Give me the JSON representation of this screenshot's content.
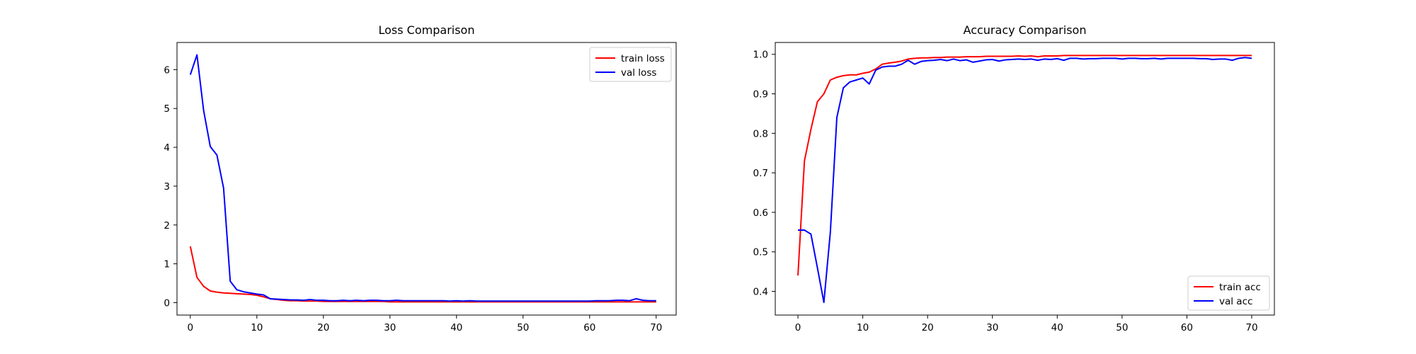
{
  "chart_data": [
    {
      "type": "line",
      "title": "Loss Comparison",
      "xlabel": "",
      "ylabel": "",
      "xlim": [
        -2,
        73
      ],
      "ylim": [
        -0.32,
        6.7
      ],
      "xticks": [
        0,
        10,
        20,
        30,
        40,
        50,
        60,
        70
      ],
      "yticks": [
        0,
        1,
        2,
        3,
        4,
        5,
        6
      ],
      "grid": false,
      "legend_position": "upper right",
      "x": [
        0,
        1,
        2,
        3,
        4,
        5,
        6,
        7,
        8,
        9,
        10,
        11,
        12,
        13,
        14,
        15,
        16,
        17,
        18,
        19,
        20,
        21,
        22,
        23,
        24,
        25,
        26,
        27,
        28,
        29,
        30,
        31,
        32,
        33,
        34,
        35,
        36,
        37,
        38,
        39,
        40,
        41,
        42,
        43,
        44,
        45,
        46,
        47,
        48,
        49,
        50,
        51,
        52,
        53,
        54,
        55,
        56,
        57,
        58,
        59,
        60,
        61,
        62,
        63,
        64,
        65,
        66,
        67,
        68,
        69,
        70
      ],
      "series": [
        {
          "name": "train loss",
          "color": "#ff0000",
          "values": [
            1.45,
            0.65,
            0.42,
            0.3,
            0.27,
            0.25,
            0.24,
            0.23,
            0.22,
            0.21,
            0.19,
            0.15,
            0.1,
            0.08,
            0.06,
            0.05,
            0.05,
            0.04,
            0.04,
            0.04,
            0.03,
            0.03,
            0.03,
            0.03,
            0.03,
            0.03,
            0.03,
            0.03,
            0.03,
            0.03,
            0.02,
            0.02,
            0.02,
            0.02,
            0.02,
            0.02,
            0.02,
            0.02,
            0.02,
            0.02,
            0.02,
            0.02,
            0.02,
            0.02,
            0.02,
            0.02,
            0.02,
            0.02,
            0.02,
            0.02,
            0.02,
            0.02,
            0.02,
            0.02,
            0.02,
            0.02,
            0.02,
            0.02,
            0.02,
            0.02,
            0.02,
            0.02,
            0.02,
            0.02,
            0.02,
            0.02,
            0.02,
            0.02,
            0.02,
            0.02,
            0.02
          ]
        },
        {
          "name": "val loss",
          "color": "#0000ff",
          "values": [
            5.87,
            6.38,
            4.95,
            4.02,
            3.8,
            2.95,
            0.55,
            0.33,
            0.28,
            0.25,
            0.22,
            0.2,
            0.1,
            0.09,
            0.08,
            0.07,
            0.07,
            0.06,
            0.08,
            0.06,
            0.06,
            0.05,
            0.05,
            0.06,
            0.05,
            0.06,
            0.05,
            0.06,
            0.06,
            0.05,
            0.05,
            0.06,
            0.05,
            0.05,
            0.05,
            0.05,
            0.05,
            0.05,
            0.05,
            0.04,
            0.05,
            0.04,
            0.05,
            0.04,
            0.04,
            0.04,
            0.04,
            0.04,
            0.04,
            0.04,
            0.04,
            0.04,
            0.04,
            0.04,
            0.04,
            0.04,
            0.04,
            0.04,
            0.04,
            0.04,
            0.04,
            0.05,
            0.05,
            0.05,
            0.06,
            0.06,
            0.05,
            0.1,
            0.06,
            0.05,
            0.05
          ]
        }
      ]
    },
    {
      "type": "line",
      "title": "Accuracy Comparison",
      "xlabel": "",
      "ylabel": "",
      "xlim": [
        -3.5,
        73.5
      ],
      "ylim": [
        0.34,
        1.03
      ],
      "xticks": [
        0,
        10,
        20,
        30,
        40,
        50,
        60,
        70
      ],
      "yticks": [
        0.4,
        0.5,
        0.6,
        0.7,
        0.8,
        0.9,
        1.0
      ],
      "ytick_labels": [
        "0.4",
        "0.5",
        "0.6",
        "0.7",
        "0.8",
        "0.9",
        "1.0"
      ],
      "grid": false,
      "legend_position": "lower right",
      "x": [
        0,
        1,
        2,
        3,
        4,
        5,
        6,
        7,
        8,
        9,
        10,
        11,
        12,
        13,
        14,
        15,
        16,
        17,
        18,
        19,
        20,
        21,
        22,
        23,
        24,
        25,
        26,
        27,
        28,
        29,
        30,
        31,
        32,
        33,
        34,
        35,
        36,
        37,
        38,
        39,
        40,
        41,
        42,
        43,
        44,
        45,
        46,
        47,
        48,
        49,
        50,
        51,
        52,
        53,
        54,
        55,
        56,
        57,
        58,
        59,
        60,
        61,
        62,
        63,
        64,
        65,
        66,
        67,
        68,
        69,
        70
      ],
      "series": [
        {
          "name": "train acc",
          "color": "#ff0000",
          "values": [
            0.44,
            0.73,
            0.81,
            0.88,
            0.9,
            0.935,
            0.942,
            0.946,
            0.948,
            0.948,
            0.952,
            0.955,
            0.963,
            0.975,
            0.978,
            0.98,
            0.983,
            0.988,
            0.99,
            0.991,
            0.991,
            0.992,
            0.992,
            0.993,
            0.993,
            0.993,
            0.994,
            0.994,
            0.994,
            0.995,
            0.995,
            0.995,
            0.995,
            0.995,
            0.996,
            0.995,
            0.996,
            0.994,
            0.996,
            0.996,
            0.996,
            0.997,
            0.997,
            0.997,
            0.997,
            0.997,
            0.997,
            0.997,
            0.997,
            0.997,
            0.997,
            0.997,
            0.997,
            0.997,
            0.997,
            0.997,
            0.997,
            0.997,
            0.997,
            0.997,
            0.997,
            0.997,
            0.997,
            0.997,
            0.997,
            0.997,
            0.997,
            0.997,
            0.997,
            0.997,
            0.997
          ]
        },
        {
          "name": "val acc",
          "color": "#0000ff",
          "values": [
            0.555,
            0.555,
            0.545,
            0.46,
            0.372,
            0.55,
            0.84,
            0.915,
            0.93,
            0.935,
            0.94,
            0.925,
            0.96,
            0.968,
            0.97,
            0.97,
            0.975,
            0.985,
            0.975,
            0.982,
            0.984,
            0.985,
            0.987,
            0.984,
            0.988,
            0.984,
            0.986,
            0.98,
            0.983,
            0.986,
            0.987,
            0.983,
            0.986,
            0.987,
            0.988,
            0.987,
            0.988,
            0.985,
            0.988,
            0.987,
            0.989,
            0.985,
            0.99,
            0.99,
            0.988,
            0.989,
            0.989,
            0.99,
            0.99,
            0.99,
            0.988,
            0.99,
            0.99,
            0.989,
            0.989,
            0.99,
            0.988,
            0.99,
            0.99,
            0.99,
            0.99,
            0.99,
            0.989,
            0.989,
            0.987,
            0.988,
            0.988,
            0.985,
            0.99,
            0.992,
            0.99
          ]
        }
      ]
    }
  ]
}
